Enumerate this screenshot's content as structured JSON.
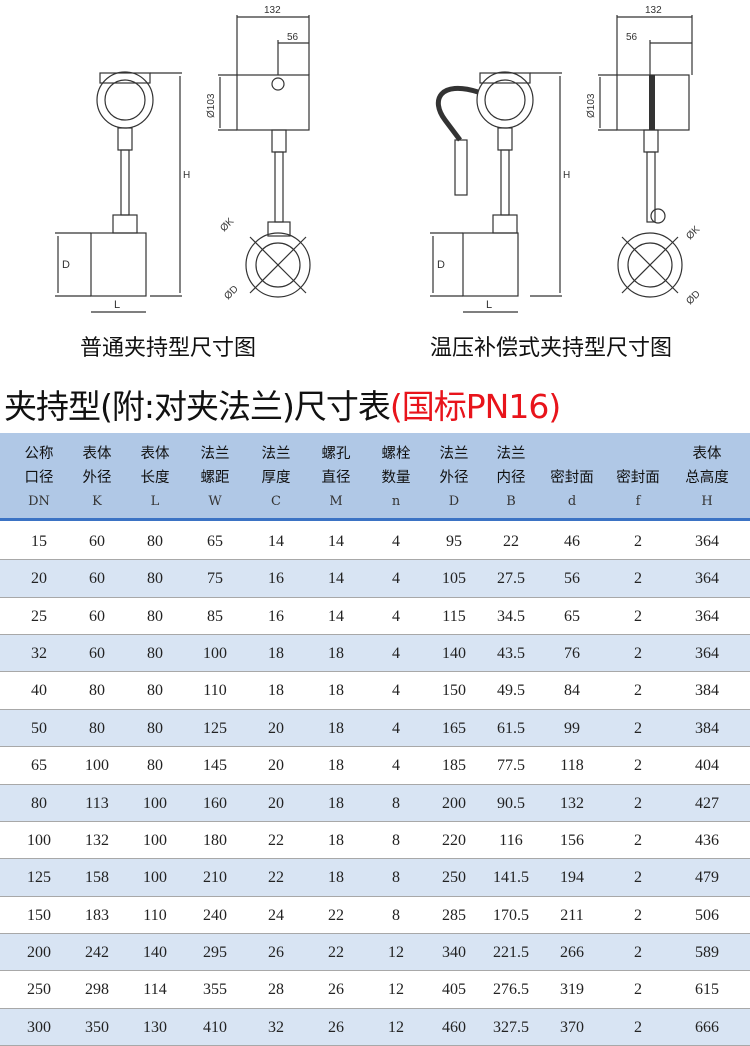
{
  "drawings": {
    "left_dims": {
      "width": "132",
      "offset": "56",
      "diameter": "Ø103",
      "height": "H",
      "pipe_d": "D",
      "length": "L",
      "dk": "ØK",
      "dd": "ØD"
    },
    "right_dims": {
      "width": "132",
      "offset": "56",
      "diameter": "Ø103",
      "height": "H",
      "pipe_d": "D",
      "length": "L",
      "dk": "ØK",
      "dd": "ØD"
    },
    "left_caption": "普通夹持型尺寸图",
    "right_caption": "温压补偿式夹持型尺寸图"
  },
  "title": {
    "main": "夹持型(附:对夹法兰)尺寸表",
    "highlight": "(国标PN16)",
    "highlight_color": "#e8141b"
  },
  "table": {
    "header_color": "#b0c8e6",
    "alt_row_color": "#d8e4f3",
    "columns": [
      {
        "l1": "公称",
        "l2": "口径",
        "sym": "DN"
      },
      {
        "l1": "表体",
        "l2": "外径",
        "sym": "K"
      },
      {
        "l1": "表体",
        "l2": "长度",
        "sym": "L"
      },
      {
        "l1": "法兰",
        "l2": "螺距",
        "sym": "W"
      },
      {
        "l1": "法兰",
        "l2": "厚度",
        "sym": "C"
      },
      {
        "l1": "螺孔",
        "l2": "直径",
        "sym": "M"
      },
      {
        "l1": "螺栓",
        "l2": "数量",
        "sym": "n"
      },
      {
        "l1": "法兰",
        "l2": "外径",
        "sym": "D"
      },
      {
        "l1": "法兰",
        "l2": "内径",
        "sym": "B"
      },
      {
        "l1": "",
        "l2": "密封面",
        "sym": "d"
      },
      {
        "l1": "",
        "l2": "密封面",
        "sym": "f"
      },
      {
        "l1": "表体",
        "l2": "总高度",
        "sym": "H"
      }
    ],
    "rows": [
      [
        "15",
        "60",
        "80",
        "65",
        "14",
        "14",
        "4",
        "95",
        "22",
        "46",
        "2",
        "364"
      ],
      [
        "20",
        "60",
        "80",
        "75",
        "16",
        "14",
        "4",
        "105",
        "27.5",
        "56",
        "2",
        "364"
      ],
      [
        "25",
        "60",
        "80",
        "85",
        "16",
        "14",
        "4",
        "115",
        "34.5",
        "65",
        "2",
        "364"
      ],
      [
        "32",
        "60",
        "80",
        "100",
        "18",
        "18",
        "4",
        "140",
        "43.5",
        "76",
        "2",
        "364"
      ],
      [
        "40",
        "80",
        "80",
        "110",
        "18",
        "18",
        "4",
        "150",
        "49.5",
        "84",
        "2",
        "384"
      ],
      [
        "50",
        "80",
        "80",
        "125",
        "20",
        "18",
        "4",
        "165",
        "61.5",
        "99",
        "2",
        "384"
      ],
      [
        "65",
        "100",
        "80",
        "145",
        "20",
        "18",
        "4",
        "185",
        "77.5",
        "118",
        "2",
        "404"
      ],
      [
        "80",
        "113",
        "100",
        "160",
        "20",
        "18",
        "8",
        "200",
        "90.5",
        "132",
        "2",
        "427"
      ],
      [
        "100",
        "132",
        "100",
        "180",
        "22",
        "18",
        "8",
        "220",
        "116",
        "156",
        "2",
        "436"
      ],
      [
        "125",
        "158",
        "100",
        "210",
        "22",
        "18",
        "8",
        "250",
        "141.5",
        "194",
        "2",
        "479"
      ],
      [
        "150",
        "183",
        "110",
        "240",
        "24",
        "22",
        "8",
        "285",
        "170.5",
        "211",
        "2",
        "506"
      ],
      [
        "200",
        "242",
        "140",
        "295",
        "26",
        "22",
        "12",
        "340",
        "221.5",
        "266",
        "2",
        "589"
      ],
      [
        "250",
        "298",
        "114",
        "355",
        "28",
        "26",
        "12",
        "405",
        "276.5",
        "319",
        "2",
        "615"
      ],
      [
        "300",
        "350",
        "130",
        "410",
        "32",
        "26",
        "12",
        "460",
        "327.5",
        "370",
        "2",
        "666"
      ]
    ]
  }
}
